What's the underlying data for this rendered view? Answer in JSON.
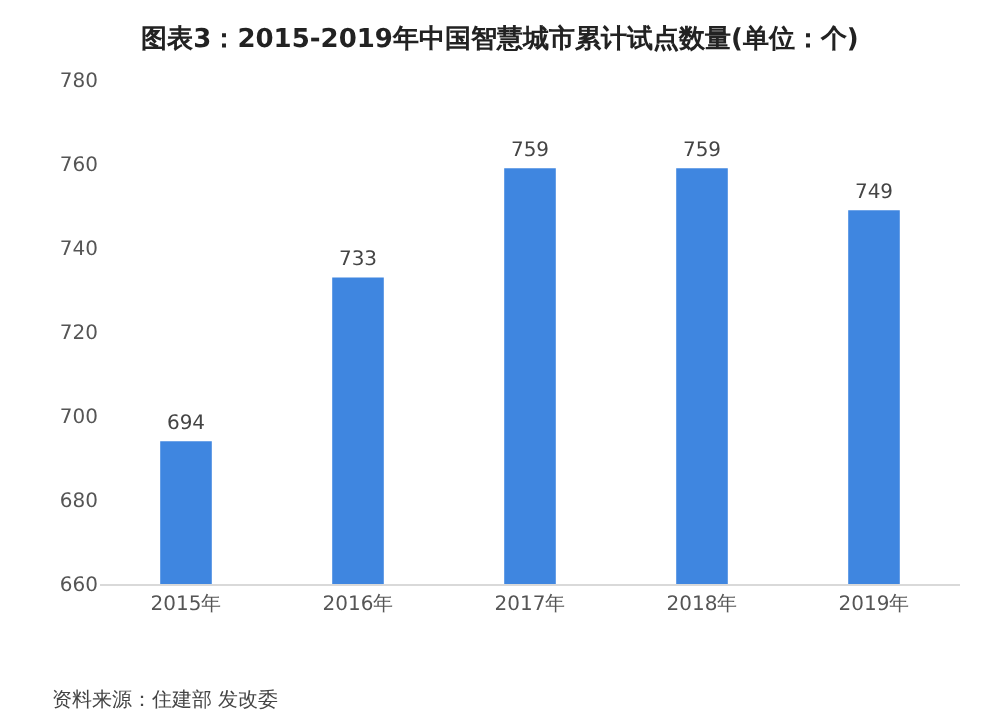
{
  "chart_data": {
    "type": "bar",
    "title": "图表3：2015-2019年中国智慧城市累计试点数量(单位：个)",
    "categories": [
      "2015年",
      "2016年",
      "2017年",
      "2018年",
      "2019年"
    ],
    "values": [
      694,
      733,
      759,
      759,
      749
    ],
    "color": "#3f86e0",
    "ylim": [
      660,
      780
    ],
    "yticks": [
      660,
      680,
      700,
      720,
      740,
      760,
      780
    ],
    "grid": false,
    "data_labels": true,
    "legend": false,
    "annotations": [
      "资料来源：住建部 发改委"
    ]
  }
}
